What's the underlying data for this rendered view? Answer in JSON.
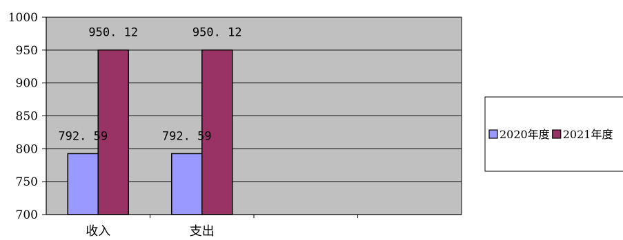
{
  "chart_data": {
    "type": "bar",
    "title": "",
    "xlabel": "",
    "ylabel": "",
    "categories": [
      "收入",
      "支出"
    ],
    "category_slots": 4,
    "series": [
      {
        "name": "2020年度",
        "values": [
          792.59,
          792.59
        ],
        "labels": [
          "792.59",
          "792.59"
        ],
        "display_labels": [
          "792. 59",
          "792. 59"
        ],
        "color": "#9999ff"
      },
      {
        "name": "2021年度",
        "values": [
          950.12,
          950.12
        ],
        "labels": [
          "950.12",
          "950.12"
        ],
        "display_labels": [
          "950. 12",
          "950. 12"
        ],
        "color": "#993366"
      }
    ],
    "ylim": [
      700,
      1000
    ],
    "yticks": [
      700,
      750,
      800,
      850,
      900,
      950,
      1000
    ],
    "grid": true,
    "plot_background": "#c0c0c0",
    "legend_position": "right"
  }
}
